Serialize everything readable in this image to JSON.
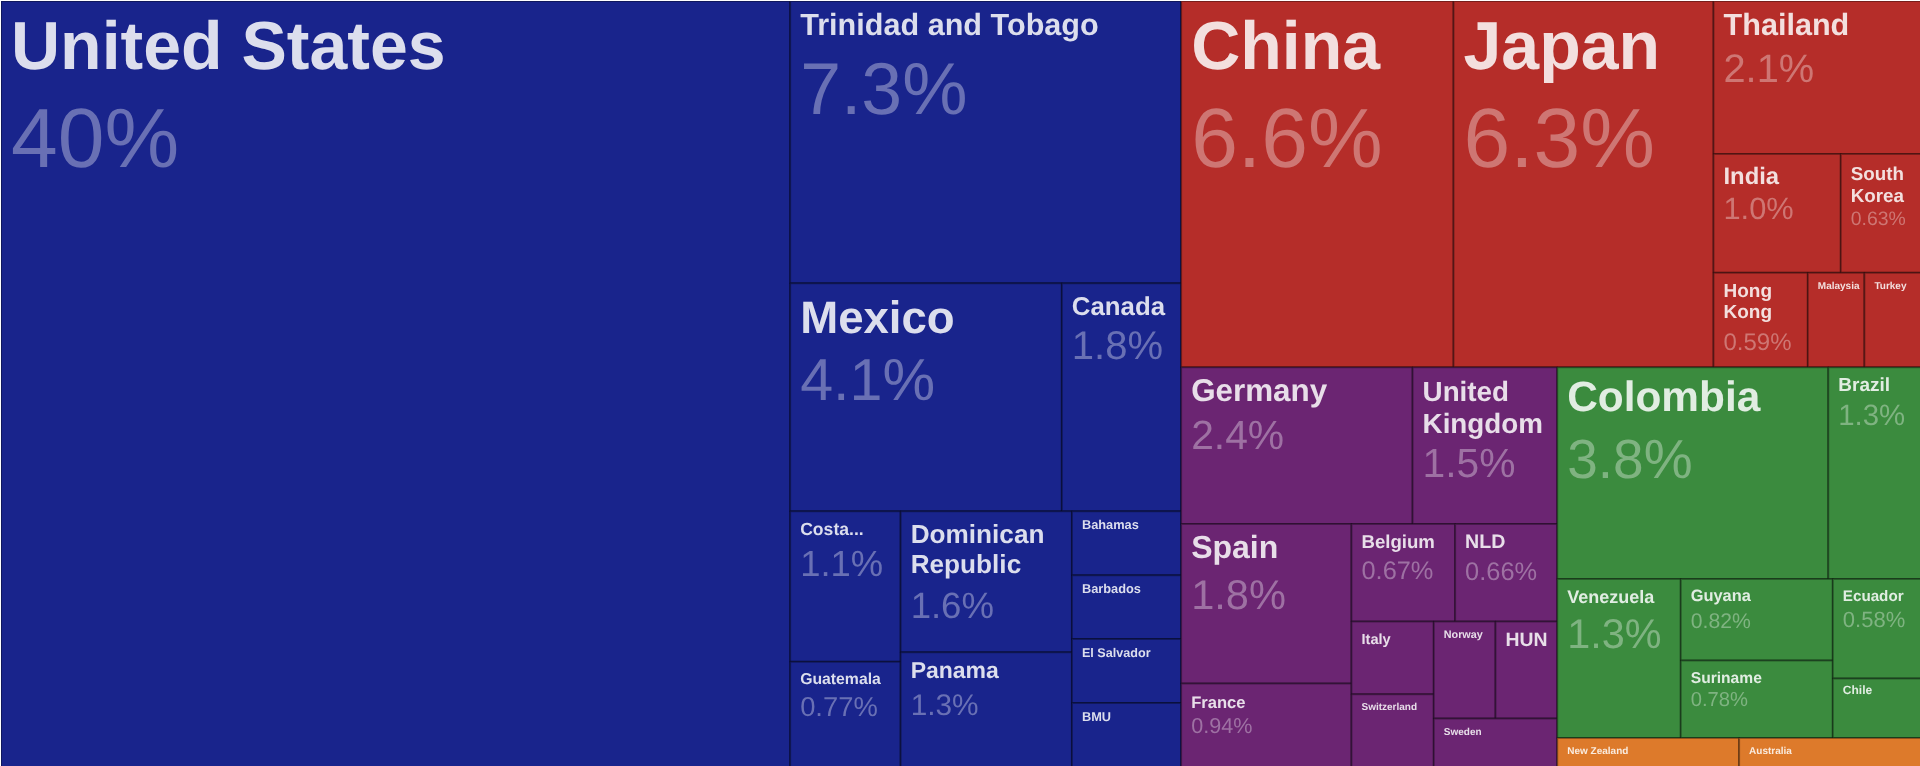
{
  "chart_data": {
    "type": "other",
    "categories": [
      "United States",
      "Trinidad and Tobago",
      "Mexico",
      "Canada",
      "Costa...",
      "Guatemala",
      "Dominican Republic",
      "Panama",
      "Bahamas",
      "Barbados",
      "El Salvador",
      "BMU",
      "China",
      "Japan",
      "Thailand",
      "India",
      "South Korea",
      "Hong Kong",
      "Malaysia",
      "Turkey",
      "Germany",
      "United Kingdom",
      "Spain",
      "France",
      "Belgium",
      "NLD",
      "Italy",
      "Switzerland",
      "Norway",
      "HUN",
      "Sweden",
      "Colombia",
      "Brazil",
      "Venezuela",
      "Guyana",
      "Suriname",
      "Ecuador",
      "Chile",
      "New Zealand",
      "Australia"
    ],
    "values": [
      40,
      7.3,
      4.1,
      1.8,
      1.1,
      0.77,
      1.6,
      1.3,
      null,
      null,
      null,
      null,
      6.6,
      6.3,
      2.1,
      1.0,
      0.63,
      0.59,
      null,
      null,
      2.4,
      1.5,
      1.8,
      0.94,
      0.67,
      0.66,
      null,
      null,
      null,
      null,
      null,
      3.8,
      1.3,
      1.3,
      0.82,
      0.78,
      0.58,
      null,
      null,
      null
    ],
    "value_labels": [
      "40%",
      "7.3%",
      "4.1%",
      "1.8%",
      "1.1%",
      "0.77%",
      "1.6%",
      "1.3%",
      null,
      null,
      null,
      null,
      "6.6%",
      "6.3%",
      "2.1%",
      "1.0%",
      "0.63%",
      "0.59%",
      null,
      null,
      "2.4%",
      "1.5%",
      "1.8%",
      "0.94%",
      "0.67%",
      "0.66%",
      null,
      null,
      null,
      null,
      null,
      "3.8%",
      "1.3%",
      "1.3%",
      "0.82%",
      "0.78%",
      "0.58%",
      null,
      null,
      null
    ],
    "colors": [
      "#19248c",
      "#19248c",
      "#19248c",
      "#19248c",
      "#19248c",
      "#19248c",
      "#19248c",
      "#19248c",
      "#19248c",
      "#19248c",
      "#19248c",
      "#19248c",
      "#b52d29",
      "#b52d29",
      "#b52d29",
      "#b52d29",
      "#b52d29",
      "#b52d29",
      "#b52d29",
      "#b52d29",
      "#6b2572",
      "#6b2572",
      "#6b2572",
      "#6b2572",
      "#6b2572",
      "#6b2572",
      "#6b2572",
      "#6b2572",
      "#6b2572",
      "#6b2572",
      "#6b2572",
      "#3b8b3e",
      "#3b8b3e",
      "#3b8b3e",
      "#3b8b3e",
      "#3b8b3e",
      "#3b8b3e",
      "#3b8b3e",
      "#dd7a2b",
      "#dd7a2b"
    ]
  }
}
